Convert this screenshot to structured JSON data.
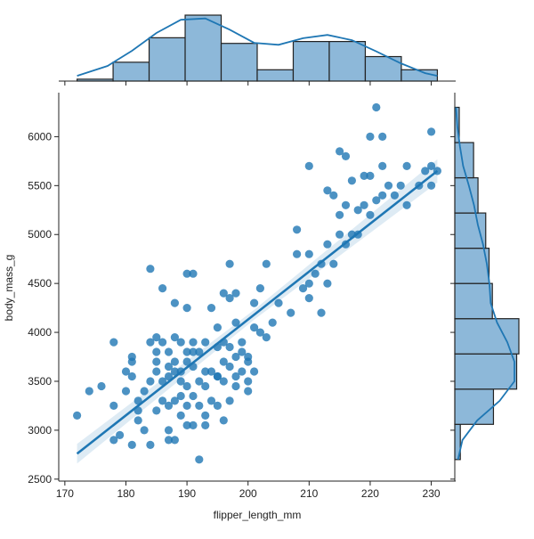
{
  "chart_data": {
    "type": "scatter",
    "xlabel": "flipper_length_mm",
    "ylabel": "body_mass_g",
    "xlim": [
      169,
      234
    ],
    "ylim": [
      2480,
      6450
    ],
    "xticks": [
      170,
      180,
      190,
      200,
      210,
      220,
      230
    ],
    "yticks": [
      2500,
      3000,
      3500,
      4000,
      4500,
      5000,
      5500,
      6000
    ],
    "grid": false,
    "colors": {
      "point": "#1f77b4",
      "line": "#1f77b4",
      "ci": "#1f77b4",
      "hist_fill": "#8db8d9",
      "hist_edge": "#222222",
      "kde": "#1f77b4"
    },
    "regression": {
      "x": [
        172,
        231
      ],
      "y": [
        2760,
        5650
      ]
    },
    "ci_band": {
      "x": [
        172,
        201,
        231
      ],
      "lower": [
        2660,
        4130,
        5530
      ],
      "upper": [
        2860,
        4230,
        5770
      ]
    },
    "points": [
      [
        172,
        3150
      ],
      [
        174,
        3400
      ],
      [
        176,
        3450
      ],
      [
        178,
        3250
      ],
      [
        178,
        2900
      ],
      [
        178,
        3900
      ],
      [
        179,
        2950
      ],
      [
        180,
        3400
      ],
      [
        180,
        3600
      ],
      [
        181,
        3550
      ],
      [
        181,
        3700
      ],
      [
        181,
        3750
      ],
      [
        181,
        2850
      ],
      [
        182,
        3300
      ],
      [
        182,
        3200
      ],
      [
        182,
        3100
      ],
      [
        183,
        3400
      ],
      [
        183,
        3000
      ],
      [
        184,
        3500
      ],
      [
        184,
        3900
      ],
      [
        184,
        2850
      ],
      [
        184,
        4650
      ],
      [
        185,
        3600
      ],
      [
        185,
        3700
      ],
      [
        185,
        3800
      ],
      [
        185,
        3200
      ],
      [
        185,
        3950
      ],
      [
        186,
        3500
      ],
      [
        186,
        3300
      ],
      [
        186,
        3900
      ],
      [
        186,
        4450
      ],
      [
        187,
        3650
      ],
      [
        187,
        3250
      ],
      [
        187,
        3550
      ],
      [
        187,
        3000
      ],
      [
        187,
        2900
      ],
      [
        187,
        3800
      ],
      [
        188,
        3300
      ],
      [
        188,
        3700
      ],
      [
        188,
        3600
      ],
      [
        188,
        3950
      ],
      [
        188,
        4300
      ],
      [
        188,
        2900
      ],
      [
        189,
        3500
      ],
      [
        189,
        3150
      ],
      [
        189,
        3900
      ],
      [
        189,
        3600
      ],
      [
        189,
        3350
      ],
      [
        190,
        3450
      ],
      [
        190,
        3800
      ],
      [
        190,
        3700
      ],
      [
        190,
        3050
      ],
      [
        190,
        4250
      ],
      [
        190,
        3250
      ],
      [
        190,
        4600
      ],
      [
        191,
        3050
      ],
      [
        191,
        3350
      ],
      [
        191,
        3650
      ],
      [
        191,
        3900
      ],
      [
        191,
        3800
      ],
      [
        191,
        4600
      ],
      [
        192,
        3500
      ],
      [
        192,
        3250
      ],
      [
        192,
        2700
      ],
      [
        192,
        3800
      ],
      [
        193,
        3450
      ],
      [
        193,
        3900
      ],
      [
        193,
        3050
      ],
      [
        193,
        3150
      ],
      [
        193,
        3600
      ],
      [
        194,
        3600
      ],
      [
        194,
        3300
      ],
      [
        194,
        4250
      ],
      [
        195,
        3550
      ],
      [
        195,
        3250
      ],
      [
        195,
        3850
      ],
      [
        195,
        4050
      ],
      [
        195,
        3550
      ],
      [
        196,
        3500
      ],
      [
        196,
        3700
      ],
      [
        196,
        3900
      ],
      [
        196,
        4400
      ],
      [
        196,
        3100
      ],
      [
        197,
        3650
      ],
      [
        197,
        4350
      ],
      [
        197,
        3300
      ],
      [
        197,
        3850
      ],
      [
        197,
        4700
      ],
      [
        198,
        3450
      ],
      [
        198,
        3750
      ],
      [
        198,
        3550
      ],
      [
        198,
        4100
      ],
      [
        198,
        4400
      ],
      [
        199,
        3800
      ],
      [
        199,
        3600
      ],
      [
        199,
        3900
      ],
      [
        200,
        3700
      ],
      [
        200,
        3500
      ],
      [
        200,
        3400
      ],
      [
        200,
        3750
      ],
      [
        201,
        4050
      ],
      [
        201,
        4300
      ],
      [
        201,
        3600
      ],
      [
        202,
        4000
      ],
      [
        202,
        4450
      ],
      [
        203,
        3950
      ],
      [
        203,
        4700
      ],
      [
        204,
        4100
      ],
      [
        205,
        4300
      ],
      [
        207,
        4200
      ],
      [
        208,
        4800
      ],
      [
        208,
        5050
      ],
      [
        209,
        4450
      ],
      [
        210,
        4350
      ],
      [
        210,
        4500
      ],
      [
        210,
        4800
      ],
      [
        210,
        5700
      ],
      [
        211,
        4600
      ],
      [
        212,
        4200
      ],
      [
        212,
        4700
      ],
      [
        213,
        4500
      ],
      [
        213,
        4900
      ],
      [
        213,
        5450
      ],
      [
        214,
        4700
      ],
      [
        214,
        5400
      ],
      [
        215,
        5000
      ],
      [
        215,
        5200
      ],
      [
        215,
        5850
      ],
      [
        216,
        4900
      ],
      [
        216,
        5300
      ],
      [
        216,
        5800
      ],
      [
        217,
        5000
      ],
      [
        217,
        5550
      ],
      [
        218,
        5000
      ],
      [
        218,
        5250
      ],
      [
        219,
        5300
      ],
      [
        219,
        5600
      ],
      [
        220,
        5200
      ],
      [
        220,
        5600
      ],
      [
        220,
        6000
      ],
      [
        221,
        5350
      ],
      [
        221,
        6300
      ],
      [
        222,
        5400
      ],
      [
        222,
        5700
      ],
      [
        222,
        6000
      ],
      [
        223,
        5500
      ],
      [
        224,
        5400
      ],
      [
        225,
        5500
      ],
      [
        226,
        5300
      ],
      [
        226,
        5700
      ],
      [
        228,
        5500
      ],
      [
        229,
        5650
      ],
      [
        230,
        5500
      ],
      [
        230,
        5700
      ],
      [
        230,
        6050
      ],
      [
        231,
        5650
      ]
    ],
    "top_histogram": {
      "bin_edges": [
        172,
        177.9,
        183.8,
        189.7,
        195.6,
        201.5,
        207.4,
        213.3,
        219.2,
        225.1,
        231
      ],
      "counts": [
        1,
        10,
        23,
        35,
        20,
        6,
        21,
        21,
        13,
        6
      ]
    },
    "right_histogram": {
      "bin_edges": [
        2700,
        3060,
        3420,
        3780,
        4140,
        4500,
        4860,
        5220,
        5580,
        5940,
        6300
      ],
      "counts": [
        5,
        35,
        56,
        58,
        34,
        31,
        28,
        21,
        17,
        4
      ]
    },
    "top_kde": {
      "x": [
        172,
        177,
        181,
        185,
        189,
        193,
        197,
        201,
        205,
        209,
        213,
        217,
        221,
        225,
        229,
        231
      ],
      "y": [
        0.08,
        0.23,
        0.46,
        0.73,
        0.93,
        0.95,
        0.78,
        0.58,
        0.55,
        0.65,
        0.7,
        0.62,
        0.45,
        0.27,
        0.12,
        0.08
      ]
    },
    "right_kde": {
      "y": [
        2700,
        2900,
        3100,
        3300,
        3500,
        3700,
        3900,
        4100,
        4300,
        4500,
        4700,
        4900,
        5100,
        5300,
        5500,
        5700,
        5900,
        6100,
        6300
      ],
      "x": [
        0.05,
        0.12,
        0.35,
        0.7,
        0.93,
        0.93,
        0.82,
        0.66,
        0.56,
        0.54,
        0.5,
        0.44,
        0.36,
        0.3,
        0.22,
        0.13,
        0.08,
        0.04,
        0.02
      ]
    }
  }
}
